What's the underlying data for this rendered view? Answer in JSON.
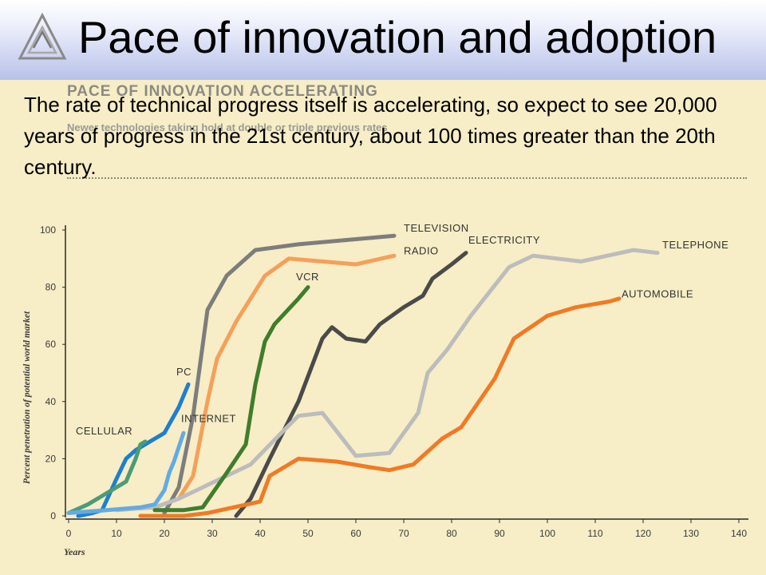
{
  "slide": {
    "title": "Pace of innovation and adoption",
    "body": "The rate of technical progress itself is accelerating, so expect to see 20,000 years of progress in the 21st century, about 100 times greater than the 20th century."
  },
  "image_text": {
    "ghost_title": "PACE OF INNOVATION ACCELERATING",
    "ghost_subtitle": "Newer technologies taking hold at double or triple previous rates"
  },
  "colors": {
    "background": "#f7edc6",
    "header_gradient_bottom": "#b8c1ea",
    "axis": "#2a2a2a",
    "axis_text": "#3a3a3a"
  },
  "chart_data": {
    "type": "line",
    "xlabel": "Years",
    "ylabel": "Percent penetration of potential world market",
    "xlim": [
      0,
      140
    ],
    "ylim": [
      0,
      100
    ],
    "xticks": [
      0,
      10,
      20,
      30,
      40,
      50,
      60,
      70,
      80,
      90,
      100,
      110,
      120,
      130,
      140
    ],
    "yticks": [
      0,
      20,
      40,
      60,
      80,
      100
    ],
    "grid": false,
    "legend": "labels placed at line ends",
    "series": [
      {
        "name": "TELEVISION",
        "color": "#7d7d7d",
        "points": [
          [
            20,
            1
          ],
          [
            23,
            10
          ],
          [
            26,
            35
          ],
          [
            29,
            72
          ],
          [
            33,
            84
          ],
          [
            39,
            93
          ],
          [
            48,
            95
          ],
          [
            68,
            98
          ]
        ]
      },
      {
        "name": "RADIO",
        "color": "#f5a05a",
        "points": [
          [
            23,
            6
          ],
          [
            26,
            14
          ],
          [
            29,
            40
          ],
          [
            31,
            55
          ],
          [
            35,
            68
          ],
          [
            41,
            84
          ],
          [
            46,
            90
          ],
          [
            60,
            88
          ],
          [
            68,
            91
          ]
        ]
      },
      {
        "name": "ELECTRICITY",
        "color": "#4a4a4a",
        "points": [
          [
            35,
            0
          ],
          [
            38,
            6
          ],
          [
            42,
            20
          ],
          [
            48,
            40
          ],
          [
            53,
            62
          ],
          [
            55,
            66
          ],
          [
            58,
            62
          ],
          [
            62,
            61
          ],
          [
            65,
            67
          ],
          [
            70,
            73
          ],
          [
            74,
            77
          ],
          [
            76,
            83
          ],
          [
            80,
            88
          ],
          [
            83,
            92
          ]
        ]
      },
      {
        "name": "TELEPHONE",
        "color": "#bcbcbc",
        "points": [
          [
            10,
            2
          ],
          [
            18,
            3
          ],
          [
            23,
            6
          ],
          [
            28,
            10
          ],
          [
            38,
            18
          ],
          [
            45,
            30
          ],
          [
            48,
            35
          ],
          [
            53,
            36
          ],
          [
            60,
            21
          ],
          [
            67,
            22
          ],
          [
            73,
            36
          ],
          [
            75,
            50
          ],
          [
            79,
            58
          ],
          [
            84,
            70
          ],
          [
            92,
            87
          ],
          [
            97,
            91
          ],
          [
            107,
            89
          ],
          [
            118,
            93
          ],
          [
            123,
            92
          ]
        ]
      },
      {
        "name": "AUTOMOBILE",
        "color": "#f07a25",
        "points": [
          [
            15,
            0
          ],
          [
            20,
            0
          ],
          [
            24,
            0
          ],
          [
            29,
            1
          ],
          [
            40,
            5
          ],
          [
            42,
            14
          ],
          [
            48,
            20
          ],
          [
            56,
            19
          ],
          [
            63,
            17
          ],
          [
            67,
            16
          ],
          [
            72,
            18
          ],
          [
            78,
            27
          ],
          [
            82,
            31
          ],
          [
            89,
            48
          ],
          [
            93,
            62
          ],
          [
            100,
            70
          ],
          [
            106,
            73
          ],
          [
            113,
            75
          ],
          [
            115,
            76
          ]
        ]
      },
      {
        "name": "VCR",
        "color": "#3f7d2d",
        "points": [
          [
            18,
            2
          ],
          [
            24,
            2
          ],
          [
            28,
            3
          ],
          [
            33,
            15
          ],
          [
            37,
            25
          ],
          [
            39,
            46
          ],
          [
            41,
            61
          ],
          [
            43,
            67
          ],
          [
            48,
            76
          ],
          [
            50,
            80
          ]
        ]
      },
      {
        "name": "PC",
        "color": "#1e7fcd",
        "points": [
          [
            2,
            0
          ],
          [
            5,
            1
          ],
          [
            7,
            2
          ],
          [
            10,
            13
          ],
          [
            12,
            20
          ],
          [
            14,
            23
          ],
          [
            17,
            26
          ],
          [
            20,
            29
          ],
          [
            23,
            38
          ],
          [
            25,
            46
          ]
        ]
      },
      {
        "name": "CELLULAR",
        "color": "#4a9c77",
        "points": [
          [
            0,
            1
          ],
          [
            4,
            4
          ],
          [
            8,
            8
          ],
          [
            12,
            12
          ],
          [
            14,
            20
          ],
          [
            15,
            25
          ],
          [
            16,
            26
          ]
        ]
      },
      {
        "name": "INTERNET",
        "color": "#62abe3",
        "points": [
          [
            0,
            1
          ],
          [
            8,
            2
          ],
          [
            15,
            3
          ],
          [
            18,
            4
          ],
          [
            20,
            9
          ],
          [
            21,
            15
          ],
          [
            22,
            19
          ],
          [
            24,
            29
          ]
        ]
      }
    ],
    "annotations": [
      {
        "text": "TELEVISION",
        "at": [
          70,
          99.4
        ]
      },
      {
        "text": "RADIO",
        "at": [
          70,
          91.5
        ]
      },
      {
        "text": "ELECTRICITY",
        "at": [
          83.5,
          95.2
        ]
      },
      {
        "text": "TELEPHONE",
        "at": [
          124,
          93.6
        ]
      },
      {
        "text": "AUTOMOBILE",
        "at": [
          115.5,
          76.4
        ]
      },
      {
        "text": "VCR",
        "at": [
          47.5,
          82.4
        ]
      },
      {
        "text": "PC",
        "at": [
          22.5,
          49.2
        ]
      },
      {
        "text": "CELLULAR",
        "at": [
          1.5,
          28.5
        ]
      },
      {
        "text": "INTERNET",
        "at": [
          23.5,
          32.8
        ]
      }
    ]
  }
}
